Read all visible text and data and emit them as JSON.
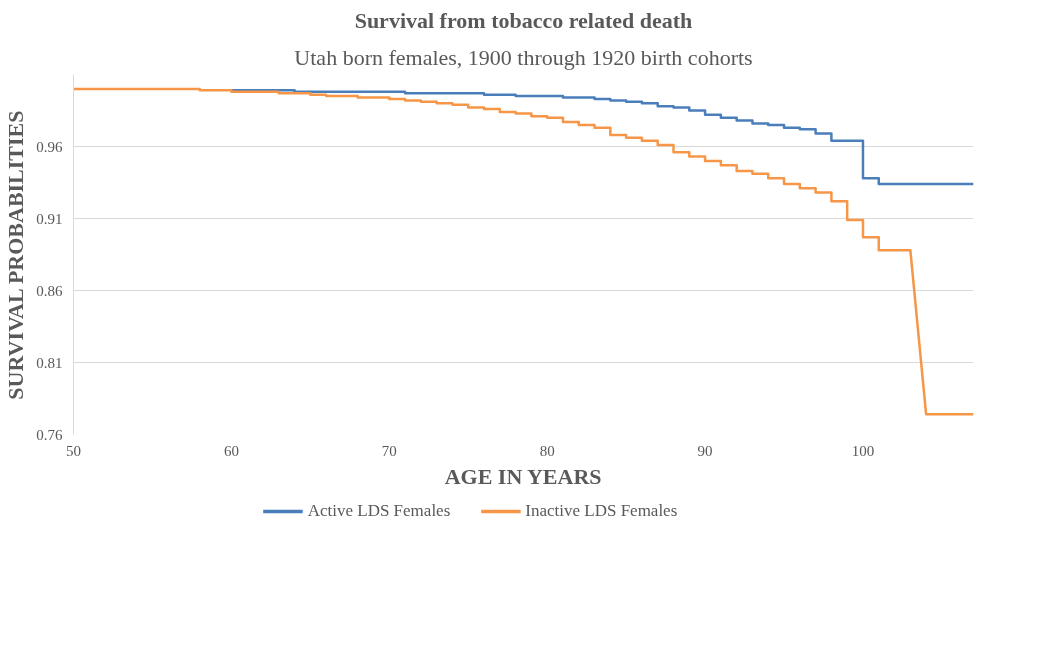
{
  "chart_data": {
    "type": "line",
    "title": "Survival from tobacco related death",
    "subtitle": "Utah born females, 1900 through 1920 birth cohorts",
    "xlabel": "AGE IN YEARS",
    "ylabel": "SURVIVAL PROBABILITIES",
    "xlim": [
      50,
      107
    ],
    "xticks": [
      50,
      60,
      70,
      80,
      90,
      100
    ],
    "ylim": [
      0.76,
      1.01
    ],
    "yticks": [
      0.76,
      0.81,
      0.86,
      0.91,
      0.96
    ],
    "grid": "y",
    "legend": "bottom",
    "marker": "none",
    "line_style": "solid",
    "series": [
      {
        "name": "Active LDS Females",
        "color": "#4a7ebb",
        "x": [
          60,
          64,
          64,
          71,
          71,
          76,
          76,
          78,
          78,
          81,
          81,
          83,
          83,
          84,
          84,
          85,
          85,
          86,
          86,
          87,
          87,
          88,
          88,
          89,
          89,
          90,
          90,
          91,
          91,
          92,
          92,
          93,
          93,
          94,
          94,
          95,
          95,
          96,
          96,
          97,
          97,
          98,
          98,
          100,
          100,
          101,
          101,
          107
        ],
        "values": [
          0.999,
          0.999,
          0.998,
          0.998,
          0.997,
          0.997,
          0.996,
          0.996,
          0.995,
          0.995,
          0.994,
          0.994,
          0.993,
          0.993,
          0.992,
          0.992,
          0.991,
          0.991,
          0.99,
          0.99,
          0.988,
          0.988,
          0.987,
          0.987,
          0.985,
          0.985,
          0.982,
          0.982,
          0.98,
          0.98,
          0.978,
          0.978,
          0.976,
          0.976,
          0.975,
          0.975,
          0.973,
          0.973,
          0.972,
          0.972,
          0.969,
          0.969,
          0.964,
          0.964,
          0.938,
          0.938,
          0.934,
          0.934
        ]
      },
      {
        "name": "Inactive LDS Females",
        "color": "#f79646",
        "x": [
          50,
          58,
          58,
          60,
          60,
          63,
          63,
          65,
          65,
          66,
          66,
          68,
          68,
          70,
          70,
          71,
          71,
          72,
          72,
          73,
          73,
          74,
          74,
          75,
          75,
          76,
          76,
          77,
          77,
          78,
          78,
          79,
          79,
          80,
          80,
          81,
          81,
          82,
          82,
          83,
          83,
          84,
          84,
          85,
          85,
          86,
          86,
          87,
          87,
          88,
          88,
          89,
          89,
          90,
          90,
          91,
          91,
          92,
          92,
          93,
          93,
          94,
          94,
          95,
          95,
          96,
          96,
          97,
          97,
          98,
          98,
          99,
          99,
          100,
          100,
          101,
          101,
          103,
          104,
          107
        ],
        "values": [
          1.0,
          1.0,
          0.999,
          0.999,
          0.998,
          0.998,
          0.997,
          0.997,
          0.996,
          0.996,
          0.995,
          0.995,
          0.994,
          0.994,
          0.993,
          0.993,
          0.992,
          0.992,
          0.991,
          0.991,
          0.99,
          0.99,
          0.989,
          0.989,
          0.987,
          0.987,
          0.986,
          0.986,
          0.984,
          0.984,
          0.983,
          0.983,
          0.981,
          0.981,
          0.98,
          0.98,
          0.977,
          0.977,
          0.975,
          0.975,
          0.973,
          0.973,
          0.968,
          0.968,
          0.966,
          0.966,
          0.964,
          0.964,
          0.961,
          0.961,
          0.956,
          0.956,
          0.953,
          0.953,
          0.95,
          0.95,
          0.947,
          0.947,
          0.943,
          0.943,
          0.941,
          0.941,
          0.938,
          0.938,
          0.934,
          0.934,
          0.931,
          0.931,
          0.928,
          0.928,
          0.922,
          0.922,
          0.909,
          0.909,
          0.897,
          0.897,
          0.888,
          0.888,
          0.774,
          0.774
        ]
      }
    ]
  }
}
